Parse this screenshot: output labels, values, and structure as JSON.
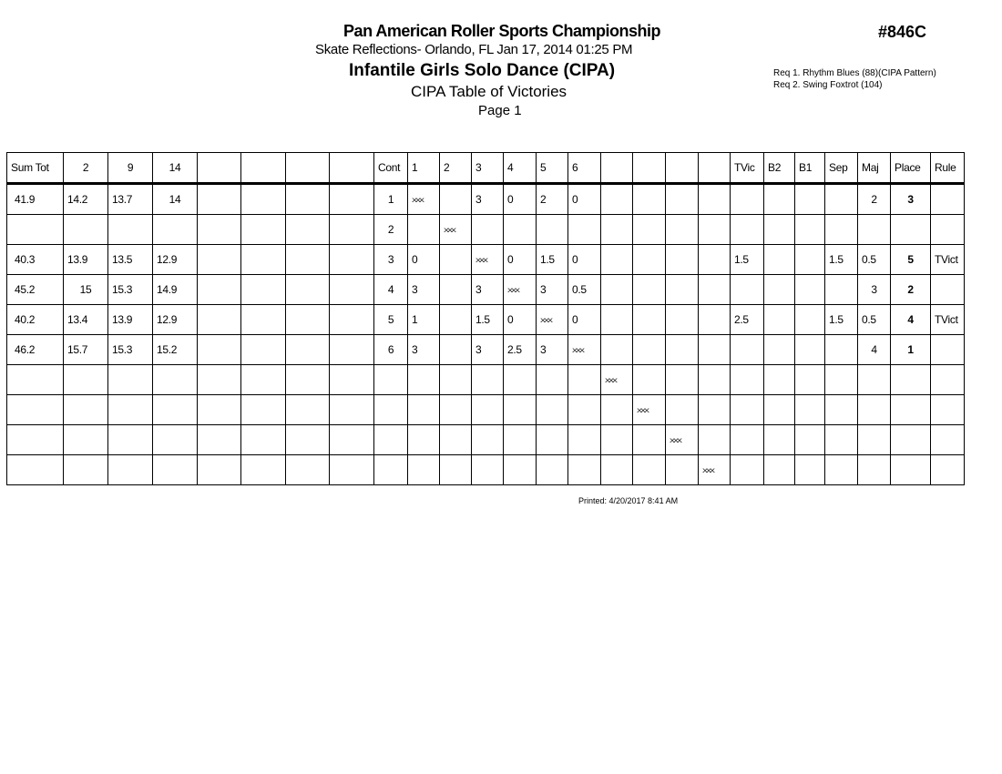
{
  "header": {
    "title": "Pan American Roller Sports Championship",
    "subtitle": "Skate Reflections- Orlando, FL  Jan 17, 2014  01:25 PM",
    "event": "Infantile Girls Solo Dance (CIPA)",
    "report": "CIPA Table of Victories",
    "page": "Page 1",
    "event_number": "#846C",
    "requirements": [
      "Req  1.  Rhythm Blues (88)(CIPA Pattern)",
      "Req  2.  Swing Foxtrot (104)"
    ]
  },
  "table": {
    "columns": [
      "Sum Tot",
      "2",
      "9",
      "14",
      "",
      "",
      "",
      "",
      "Cont",
      "1",
      "2",
      "3",
      "4",
      "5",
      "6",
      "",
      "",
      "",
      "",
      "TVic",
      "B2",
      "B1",
      "Sep",
      "Maj",
      "Place",
      "Rule"
    ],
    "rows": [
      [
        "41.9",
        "14.2",
        "13.7",
        "14",
        "",
        "",
        "",
        "",
        "1",
        "XXX",
        "",
        "3",
        "0",
        "2",
        "0",
        "",
        "",
        "",
        "",
        "",
        "",
        "",
        "",
        "2",
        "3",
        ""
      ],
      [
        "",
        "",
        "",
        "",
        "",
        "",
        "",
        "",
        "2",
        "",
        "XXX",
        "",
        "",
        "",
        "",
        "",
        "",
        "",
        "",
        "",
        "",
        "",
        "",
        "",
        "",
        ""
      ],
      [
        "40.3",
        "13.9",
        "13.5",
        "12.9",
        "",
        "",
        "",
        "",
        "3",
        "0",
        "",
        "XXX",
        "0",
        "1.5",
        "0",
        "",
        "",
        "",
        "",
        "1.5",
        "",
        "",
        "1.5",
        "0.5",
        "5",
        "TVict"
      ],
      [
        "45.2",
        "15",
        "15.3",
        "14.9",
        "",
        "",
        "",
        "",
        "4",
        "3",
        "",
        "3",
        "XXX",
        "3",
        "0.5",
        "",
        "",
        "",
        "",
        "",
        "",
        "",
        "",
        "3",
        "2",
        ""
      ],
      [
        "40.2",
        "13.4",
        "13.9",
        "12.9",
        "",
        "",
        "",
        "",
        "5",
        "1",
        "",
        "1.5",
        "0",
        "XXX",
        "0",
        "",
        "",
        "",
        "",
        "2.5",
        "",
        "",
        "1.5",
        "0.5",
        "4",
        "TVict"
      ],
      [
        "46.2",
        "15.7",
        "15.3",
        "15.2",
        "",
        "",
        "",
        "",
        "6",
        "3",
        "",
        "3",
        "2.5",
        "3",
        "XXX",
        "",
        "",
        "",
        "",
        "",
        "",
        "",
        "",
        "4",
        "1",
        ""
      ],
      [
        "",
        "",
        "",
        "",
        "",
        "",
        "",
        "",
        "",
        "",
        "",
        "",
        "",
        "",
        "",
        "XXX",
        "",
        "",
        "",
        "",
        "",
        "",
        "",
        "",
        "",
        ""
      ],
      [
        "",
        "",
        "",
        "",
        "",
        "",
        "",
        "",
        "",
        "",
        "",
        "",
        "",
        "",
        "",
        "",
        "XXX",
        "",
        "",
        "",
        "",
        "",
        "",
        "",
        "",
        ""
      ],
      [
        "",
        "",
        "",
        "",
        "",
        "",
        "",
        "",
        "",
        "",
        "",
        "",
        "",
        "",
        "",
        "",
        "",
        "XXX",
        "",
        "",
        "",
        "",
        "",
        "",
        "",
        ""
      ],
      [
        "",
        "",
        "",
        "",
        "",
        "",
        "",
        "",
        "",
        "",
        "",
        "",
        "",
        "",
        "",
        "",
        "",
        "",
        "XXX",
        "",
        "",
        "",
        "",
        "",
        "",
        ""
      ]
    ]
  },
  "footer": {
    "printed": "Printed:  4/20/2017  8:41 AM"
  }
}
